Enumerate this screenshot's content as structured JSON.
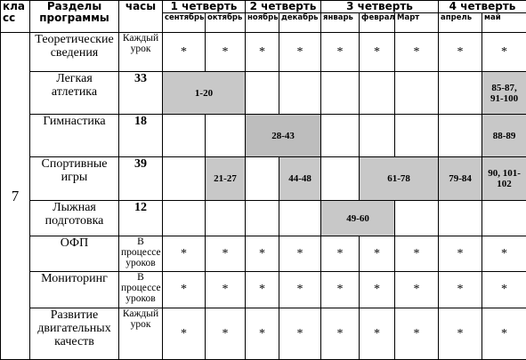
{
  "header": {
    "class": "кла сс",
    "section": "Разделы программы",
    "hours": "часы",
    "quarters": [
      {
        "label": "1 четверть",
        "span": 2
      },
      {
        "label": "2 четверть",
        "span": 2
      },
      {
        "label": "3 четверть",
        "span": 3
      },
      {
        "label": "4 четверть",
        "span": 2
      }
    ],
    "months": [
      "сентябрь",
      "октябрь",
      "ноябрь",
      "декабрь",
      "январь",
      "февраль",
      "Март",
      "апрель",
      "май"
    ]
  },
  "table": {
    "class_value": "7",
    "rows": [
      {
        "section": "Теоретические сведения",
        "hours": "Каждый урок",
        "cells": [
          {
            "text": "*"
          },
          {
            "text": "*"
          },
          {
            "text": "*"
          },
          {
            "text": "*"
          },
          {
            "text": "*"
          },
          {
            "text": "*"
          },
          {
            "text": "*"
          },
          {
            "text": "*"
          },
          {
            "text": "*"
          }
        ]
      },
      {
        "section": "Легкая атлетика",
        "hours": "33",
        "cells": [
          {
            "text": "1-20",
            "span": 2,
            "shade": "#c8c8c8"
          },
          {},
          {},
          {},
          {},
          {},
          {},
          {
            "text": "85-87, 91-100",
            "shade": "#c8c8c8"
          }
        ]
      },
      {
        "section": "Гимнастика",
        "hours": "18",
        "cells": [
          {},
          {},
          {
            "text": "28-43",
            "span": 2,
            "shade": "#bdbdbd"
          },
          {},
          {},
          {},
          {},
          {
            "text": "88-89",
            "shade": "#c8c8c8"
          }
        ]
      },
      {
        "section": "Спортивные игры",
        "hours": "39",
        "cells": [
          {},
          {
            "text": "21-27",
            "shade": "#c8c8c8"
          },
          {},
          {
            "text": "44-48",
            "shade": "#c8c8c8"
          },
          {},
          {
            "text": "61-78",
            "span": 2,
            "shade": "#c8c8c8"
          },
          {
            "text": "79-84",
            "shade": "#c8c8c8"
          },
          {
            "text": "90, 101-102",
            "shade": "#c8c8c8"
          }
        ]
      },
      {
        "section": "Лыжная подготовка",
        "hours": "12",
        "cells": [
          {},
          {},
          {},
          {},
          {
            "text": "49-60",
            "span": 2,
            "shade": "#c8c8c8"
          },
          {},
          {},
          {}
        ]
      },
      {
        "section": "ОФП",
        "hours": "В процессе уроков",
        "cells": [
          {
            "text": "*"
          },
          {
            "text": "*"
          },
          {
            "text": "*"
          },
          {
            "text": "*"
          },
          {
            "text": "*"
          },
          {
            "text": "*"
          },
          {
            "text": "*"
          },
          {
            "text": "*"
          },
          {
            "text": "*"
          }
        ]
      },
      {
        "section": "Мониторинг",
        "hours": "В процессе уроков",
        "cells": [
          {
            "text": "*"
          },
          {
            "text": "*"
          },
          {
            "text": "*"
          },
          {
            "text": "*"
          },
          {
            "text": "*"
          },
          {
            "text": "*"
          },
          {
            "text": "*"
          },
          {
            "text": "*"
          },
          {
            "text": "*"
          }
        ]
      },
      {
        "section": "Развитие двигательных качеств",
        "hours": "Каждый урок",
        "cells": [
          {
            "text": "*"
          },
          {
            "text": "*"
          },
          {
            "text": "*"
          },
          {
            "text": "*"
          },
          {
            "text": "*"
          },
          {
            "text": "*"
          },
          {
            "text": "*"
          },
          {
            "text": "*"
          },
          {
            "text": "*"
          }
        ]
      }
    ]
  }
}
